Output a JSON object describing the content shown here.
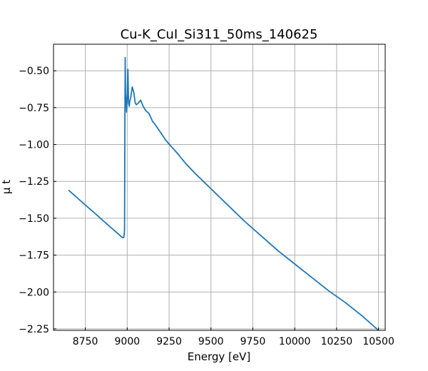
{
  "chart_data": {
    "type": "line",
    "title": "Cu-K_CuI_Si311_50ms_140625",
    "xlabel": "Energy [eV]",
    "ylabel": "μ t",
    "xlim": [
      8560,
      10540
    ],
    "ylim": [
      -2.26,
      -0.32
    ],
    "grid": true,
    "legend": "none",
    "colors": {
      "line": "#1f77b4",
      "grid": "#b0b0b0",
      "axes": "#000000"
    },
    "x_ticks": [
      {
        "value": 8750,
        "label": "8750"
      },
      {
        "value": 9000,
        "label": "9000"
      },
      {
        "value": 9250,
        "label": "9250"
      },
      {
        "value": 9500,
        "label": "9500"
      },
      {
        "value": 9750,
        "label": "9750"
      },
      {
        "value": 10000,
        "label": "10000"
      },
      {
        "value": 10250,
        "label": "10250"
      },
      {
        "value": 10500,
        "label": "10500"
      }
    ],
    "y_ticks": [
      {
        "value": -0.5,
        "label": "−0.50"
      },
      {
        "value": -0.75,
        "label": "−0.75"
      },
      {
        "value": -1.0,
        "label": "−1.00"
      },
      {
        "value": -1.25,
        "label": "−1.25"
      },
      {
        "value": -1.5,
        "label": "−1.50"
      },
      {
        "value": -1.75,
        "label": "−1.75"
      },
      {
        "value": -2.0,
        "label": "−2.00"
      },
      {
        "value": -2.25,
        "label": "−2.25"
      }
    ],
    "series": [
      {
        "x": [
          8650,
          8700,
          8750,
          8800,
          8850,
          8900,
          8950,
          8970,
          8980,
          8984,
          8986,
          8988,
          8990,
          8993,
          8996,
          9000,
          9004,
          9008,
          9012,
          9016,
          9020,
          9030,
          9040,
          9048,
          9055,
          9065,
          9080,
          9095,
          9110,
          9130,
          9150,
          9170,
          9200,
          9230,
          9260,
          9300,
          9350,
          9400,
          9500,
          9600,
          9700,
          9800,
          9900,
          10000,
          10100,
          10200,
          10300,
          10400,
          10500
        ],
        "y": [
          -1.31,
          -1.36,
          -1.41,
          -1.46,
          -1.51,
          -1.56,
          -1.61,
          -1.63,
          -1.63,
          -1.58,
          -0.95,
          -0.41,
          -0.66,
          -0.69,
          -0.78,
          -0.68,
          -0.49,
          -0.72,
          -0.74,
          -0.7,
          -0.69,
          -0.61,
          -0.65,
          -0.72,
          -0.73,
          -0.72,
          -0.7,
          -0.74,
          -0.77,
          -0.79,
          -0.84,
          -0.87,
          -0.92,
          -0.97,
          -1.01,
          -1.06,
          -1.13,
          -1.19,
          -1.3,
          -1.41,
          -1.52,
          -1.62,
          -1.72,
          -1.81,
          -1.9,
          -1.99,
          -2.07,
          -2.16,
          -2.26
        ]
      }
    ]
  }
}
